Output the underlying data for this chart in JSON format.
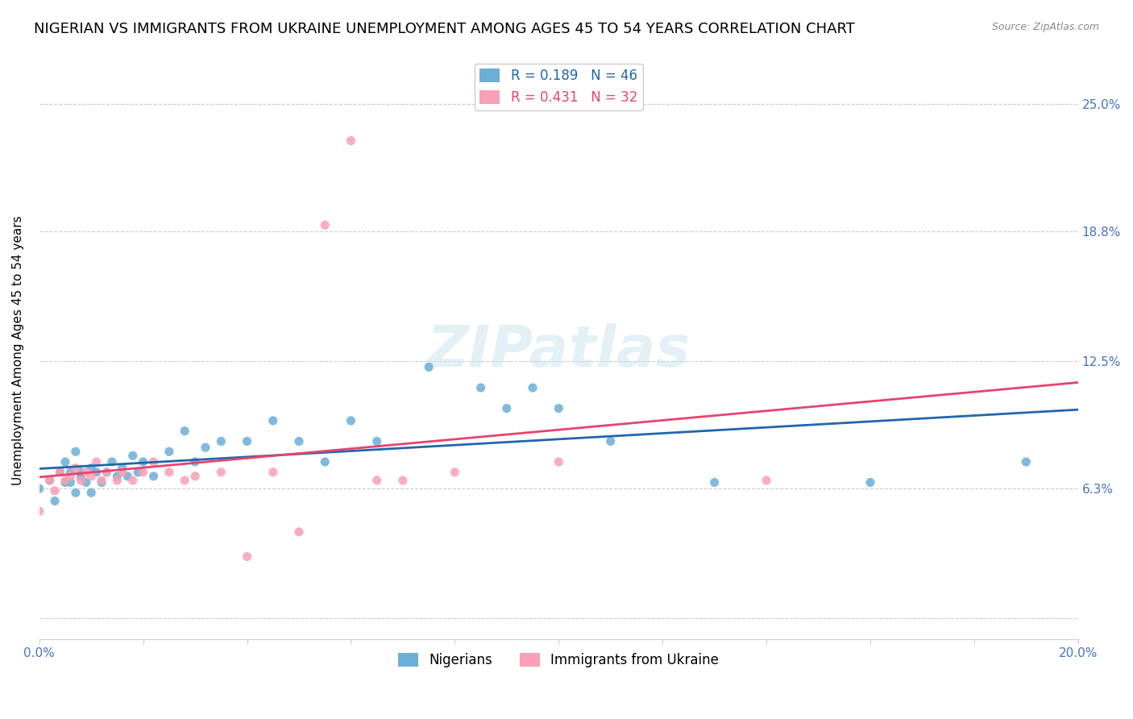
{
  "title": "NIGERIAN VS IMMIGRANTS FROM UKRAINE UNEMPLOYMENT AMONG AGES 45 TO 54 YEARS CORRELATION CHART",
  "source": "Source: ZipAtlas.com",
  "ylabel": "Unemployment Among Ages 45 to 54 years",
  "xlim": [
    0.0,
    0.2
  ],
  "ylim": [
    -0.01,
    0.27
  ],
  "yticks": [
    0.0,
    0.063,
    0.125,
    0.188,
    0.25
  ],
  "ytick_labels": [
    "",
    "6.3%",
    "12.5%",
    "18.8%",
    "25.0%"
  ],
  "xticks": [
    0.0,
    0.02,
    0.04,
    0.06,
    0.08,
    0.1,
    0.12,
    0.14,
    0.16,
    0.18,
    0.2
  ],
  "nigerian_R": 0.189,
  "nigerian_N": 46,
  "ukraine_R": 0.431,
  "ukraine_N": 32,
  "scatter_nigerian_x": [
    0.0,
    0.002,
    0.003,
    0.004,
    0.005,
    0.005,
    0.006,
    0.006,
    0.007,
    0.007,
    0.008,
    0.008,
    0.009,
    0.01,
    0.01,
    0.011,
    0.012,
    0.013,
    0.014,
    0.015,
    0.016,
    0.017,
    0.018,
    0.019,
    0.02,
    0.022,
    0.025,
    0.028,
    0.03,
    0.032,
    0.035,
    0.04,
    0.045,
    0.05,
    0.055,
    0.06,
    0.065,
    0.075,
    0.085,
    0.09,
    0.095,
    0.1,
    0.11,
    0.13,
    0.16,
    0.19
  ],
  "scatter_nigerian_y": [
    0.063,
    0.067,
    0.057,
    0.071,
    0.066,
    0.076,
    0.071,
    0.066,
    0.081,
    0.061,
    0.071,
    0.069,
    0.066,
    0.073,
    0.061,
    0.071,
    0.066,
    0.071,
    0.076,
    0.069,
    0.073,
    0.069,
    0.079,
    0.071,
    0.076,
    0.069,
    0.081,
    0.091,
    0.076,
    0.083,
    0.086,
    0.086,
    0.096,
    0.086,
    0.076,
    0.096,
    0.086,
    0.122,
    0.112,
    0.102,
    0.112,
    0.102,
    0.086,
    0.066,
    0.066,
    0.076
  ],
  "scatter_ukraine_x": [
    0.0,
    0.002,
    0.003,
    0.004,
    0.005,
    0.006,
    0.007,
    0.008,
    0.009,
    0.01,
    0.011,
    0.012,
    0.013,
    0.015,
    0.016,
    0.018,
    0.02,
    0.022,
    0.025,
    0.028,
    0.03,
    0.035,
    0.04,
    0.045,
    0.05,
    0.055,
    0.06,
    0.065,
    0.07,
    0.08,
    0.1,
    0.14
  ],
  "scatter_ukraine_y": [
    0.052,
    0.067,
    0.062,
    0.071,
    0.067,
    0.069,
    0.073,
    0.067,
    0.071,
    0.069,
    0.076,
    0.067,
    0.071,
    0.067,
    0.071,
    0.067,
    0.071,
    0.076,
    0.071,
    0.067,
    0.069,
    0.071,
    0.03,
    0.071,
    0.042,
    0.191,
    0.232,
    0.067,
    0.067,
    0.071,
    0.076,
    0.067
  ],
  "nigerian_color": "#6baed6",
  "ukraine_color": "#fa9fb5",
  "nigerian_line_color": "#2166ac",
  "ukraine_line_color": "#e8436e",
  "background_color": "#ffffff",
  "title_fontsize": 13,
  "axis_label_fontsize": 11,
  "tick_fontsize": 11,
  "legend_fontsize": 12,
  "grid_color": "#cccccc"
}
